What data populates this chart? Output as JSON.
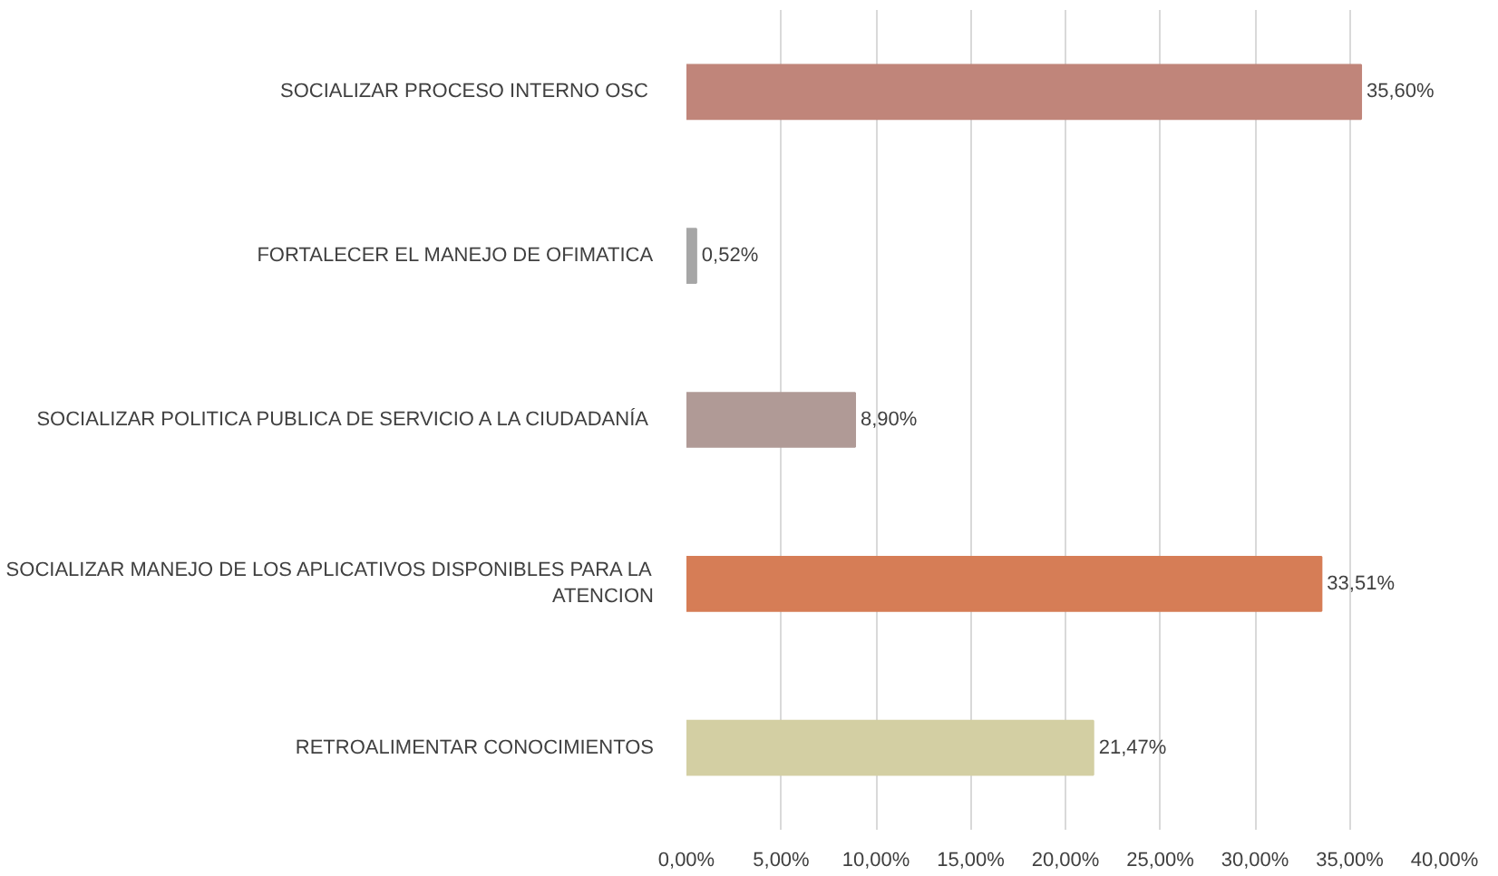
{
  "chart_data": {
    "type": "bar",
    "orientation": "horizontal",
    "categories": [
      "SOCIALIZAR  PROCESO INTERNO OSC",
      "FORTALECER EL MANEJO DE OFIMATICA",
      "SOCIALIZAR POLITICA PUBLICA DE SERVICIO A LA CIUDADANÍA",
      "SOCIALIZAR MANEJO DE LOS APLICATIVOS DISPONIBLES PARA LA ATENCION",
      "RETROALIMENTAR CONOCIMIENTOS"
    ],
    "values": [
      35.6,
      0.52,
      8.9,
      33.51,
      21.47
    ],
    "colors": [
      "#c0857a",
      "#a6a6a6",
      "#b09a96",
      "#d67d56",
      "#d3cfa3"
    ],
    "value_labels": [
      "35,60%",
      "0,52%",
      "8,90%",
      "33,51%",
      "21,47%"
    ],
    "xlim": [
      0,
      40
    ],
    "xticks": [
      {
        "value": 0,
        "label": "0,00%"
      },
      {
        "value": 5,
        "label": "5,00%"
      },
      {
        "value": 10,
        "label": "10,00%"
      },
      {
        "value": 15,
        "label": "15,00%"
      },
      {
        "value": 20,
        "label": "20,00%"
      },
      {
        "value": 25,
        "label": "25,00%"
      },
      {
        "value": 30,
        "label": "30,00%"
      },
      {
        "value": 35,
        "label": "35,00%"
      },
      {
        "value": 40,
        "label": "40,00%"
      }
    ],
    "grid": "x"
  }
}
